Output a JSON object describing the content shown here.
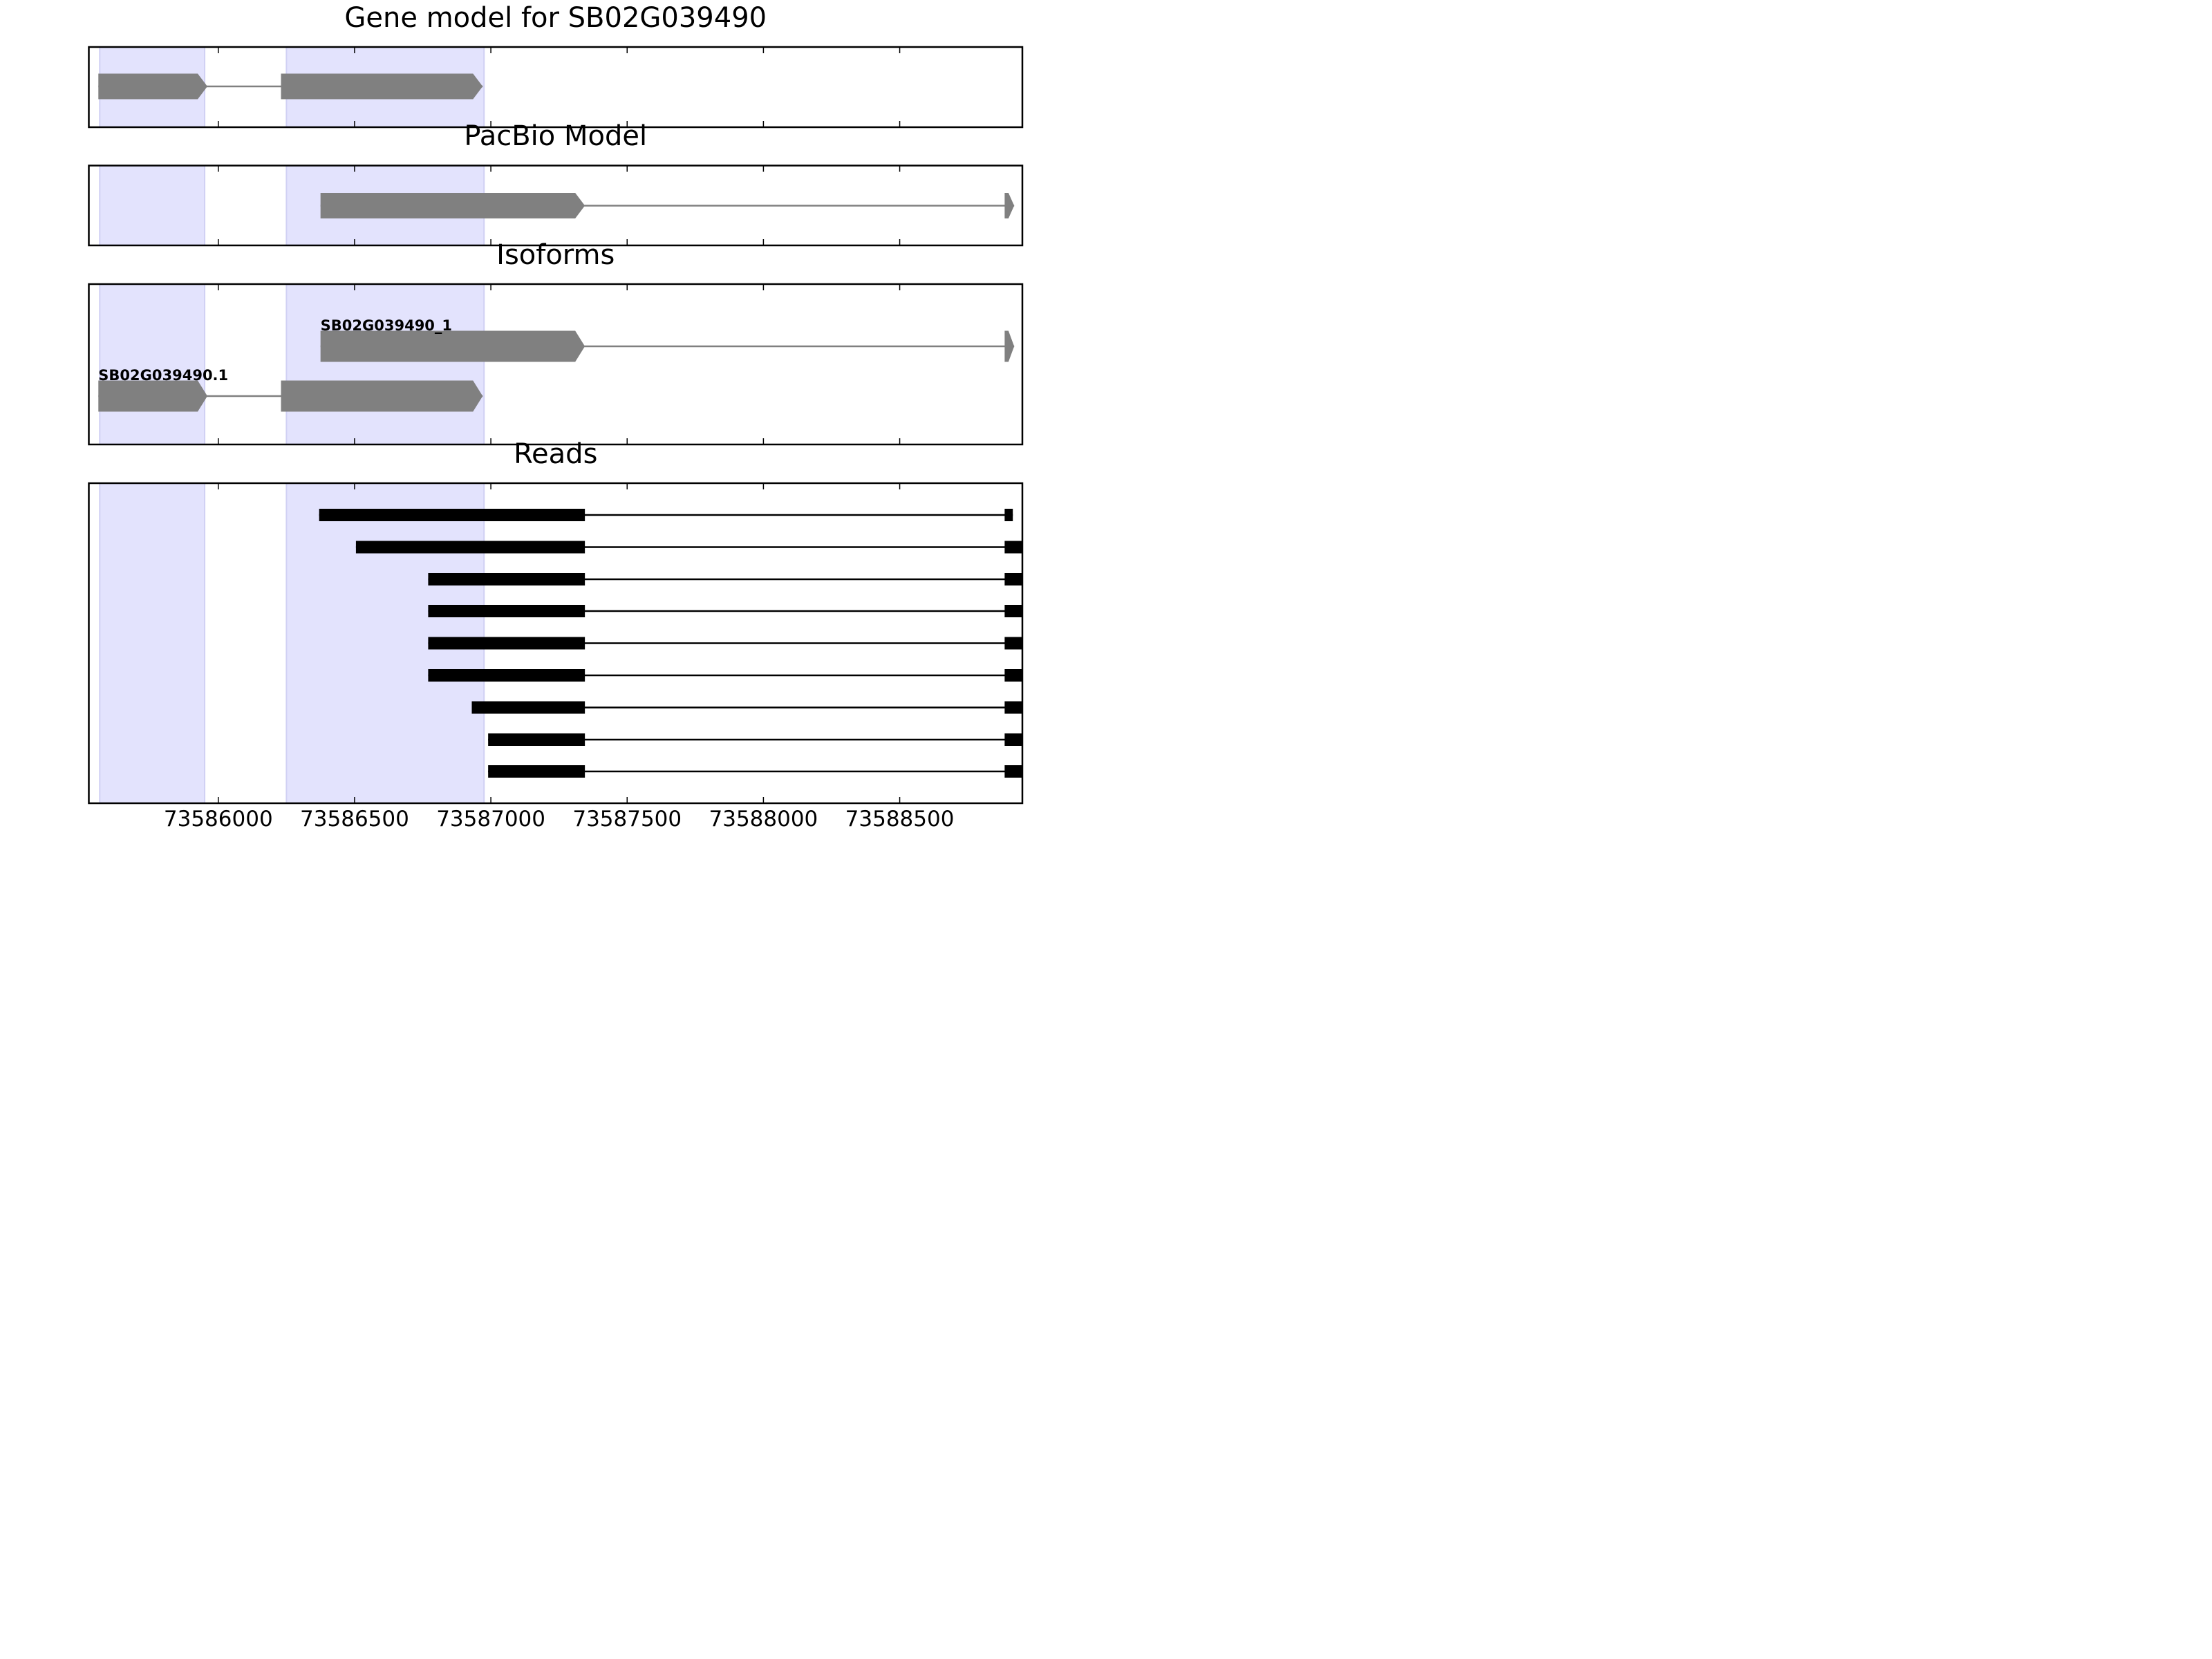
{
  "chart_data": {
    "type": "gene_model_tracks",
    "xlim": [
      73585525,
      73588950
    ],
    "xticks": [
      73586000,
      73586500,
      73587000,
      73587500,
      73588000,
      73588500
    ],
    "xtick_labels": [
      "73586000",
      "73586500",
      "73587000",
      "73587500",
      "73588000",
      "73588500"
    ],
    "highlight_regions": [
      [
        73585565,
        73585950
      ],
      [
        73586250,
        73586975
      ]
    ],
    "colors": {
      "highlight": "#e3e3fd",
      "highlight_edge": "#d0d0f4",
      "gene": "#808080",
      "read": "#000000",
      "axes": "#000000",
      "background": "#ffffff"
    },
    "panels": [
      {
        "id": "gene-model",
        "title": "Gene model for SB02G039490",
        "models": [
          {
            "label": "",
            "exons": [
              [
                73585560,
                73585960
              ],
              [
                73586230,
                73586970
              ]
            ],
            "arrow": true
          }
        ]
      },
      {
        "id": "pacbio-model",
        "title": "PacBio Model",
        "models": [
          {
            "label": "",
            "exons": [
              [
                73586375,
                73587345
              ],
              [
                73588885,
                73588920
              ]
            ],
            "arrow": true
          }
        ]
      },
      {
        "id": "isoforms",
        "title": "Isoforms",
        "models": [
          {
            "label": "SB02G039490_1",
            "exons": [
              [
                73586375,
                73587345
              ],
              [
                73588885,
                73588920
              ]
            ],
            "arrow": true
          },
          {
            "label": "SB02G039490.1",
            "exons": [
              [
                73585560,
                73585960
              ],
              [
                73586230,
                73586970
              ]
            ],
            "arrow": true
          }
        ]
      },
      {
        "id": "reads",
        "title": "Reads",
        "reads": [
          {
            "exons": [
              [
                73586370,
                73587345
              ],
              [
                73588885,
                73588915
              ]
            ]
          },
          {
            "exons": [
              [
                73586505,
                73587345
              ],
              [
                73588885,
                73588950
              ]
            ]
          },
          {
            "exons": [
              [
                73586770,
                73587345
              ],
              [
                73588885,
                73588950
              ]
            ]
          },
          {
            "exons": [
              [
                73586770,
                73587345
              ],
              [
                73588885,
                73588950
              ]
            ]
          },
          {
            "exons": [
              [
                73586770,
                73587345
              ],
              [
                73588885,
                73588950
              ]
            ]
          },
          {
            "exons": [
              [
                73586770,
                73587345
              ],
              [
                73588885,
                73588950
              ]
            ]
          },
          {
            "exons": [
              [
                73586930,
                73587345
              ],
              [
                73588885,
                73588950
              ]
            ]
          },
          {
            "exons": [
              [
                73586990,
                73587345
              ],
              [
                73588885,
                73588950
              ]
            ]
          },
          {
            "exons": [
              [
                73586990,
                73587345
              ],
              [
                73588885,
                73588950
              ]
            ]
          }
        ]
      }
    ]
  }
}
